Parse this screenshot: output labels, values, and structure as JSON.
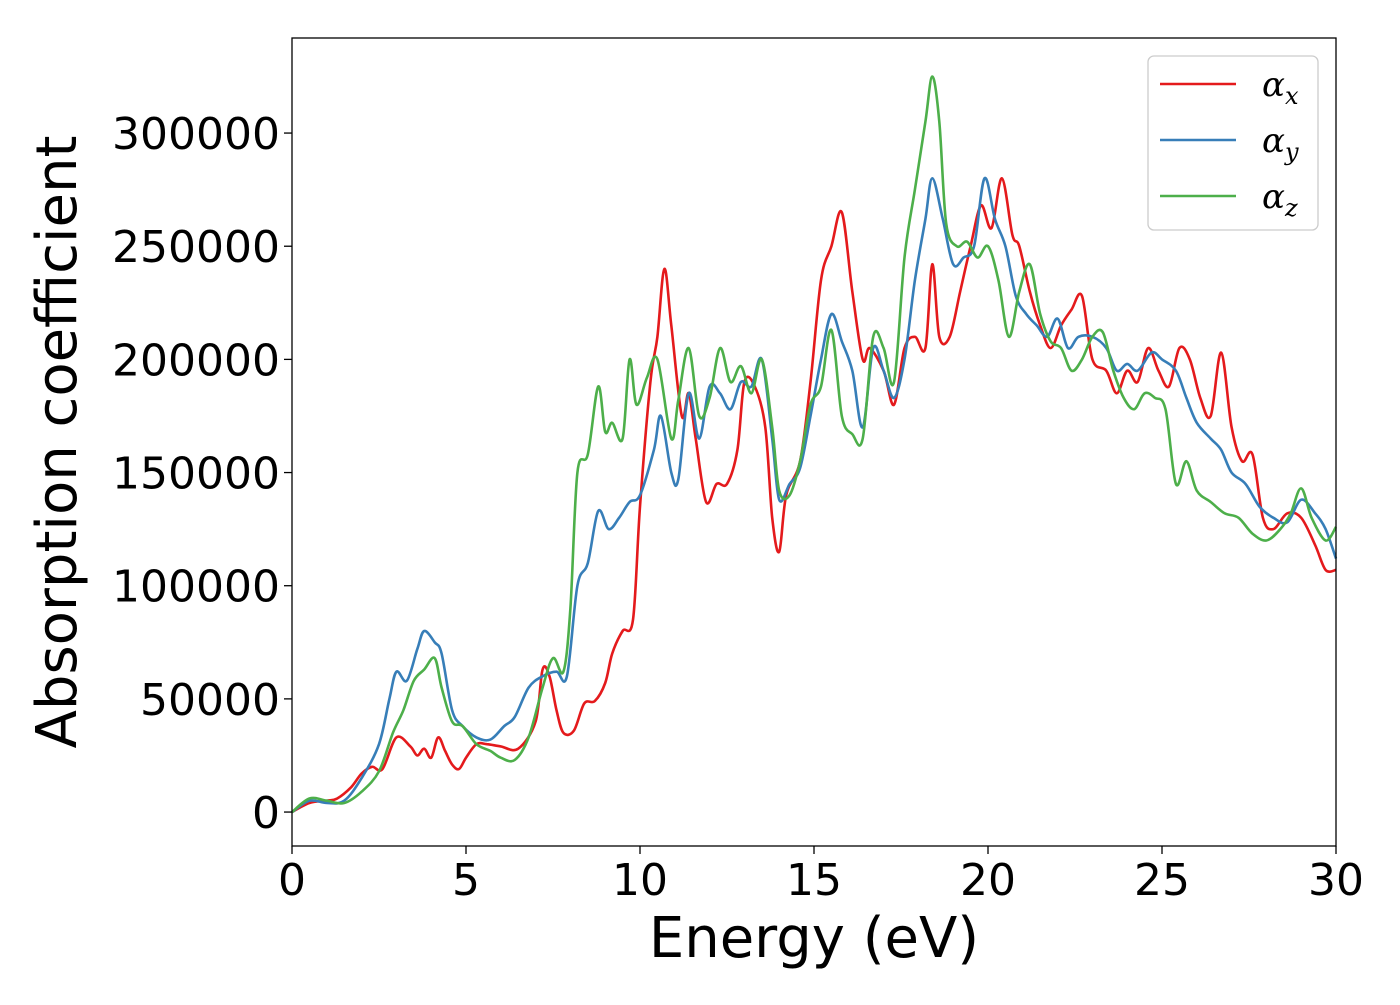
{
  "chart_data": {
    "type": "line",
    "title": "",
    "xlabel": "Energy (eV)",
    "ylabel": "Absorption coefficient",
    "xlim": [
      0,
      30
    ],
    "ylim": [
      -15000,
      342000
    ],
    "xticks": [
      0,
      5,
      10,
      15,
      20,
      25,
      30
    ],
    "yticks": [
      0,
      50000,
      100000,
      150000,
      200000,
      250000,
      300000
    ],
    "grid": false,
    "legend_position": "top-right",
    "series": [
      {
        "name": "αx",
        "label_base": "α",
        "label_sub": "x",
        "color": "#e41a1c",
        "points": [
          [
            0,
            0
          ],
          [
            0.5,
            4000
          ],
          [
            1,
            5000
          ],
          [
            1.3,
            6000
          ],
          [
            1.7,
            11000
          ],
          [
            2,
            17000
          ],
          [
            2.3,
            20000
          ],
          [
            2.6,
            19000
          ],
          [
            3,
            33000
          ],
          [
            3.4,
            29000
          ],
          [
            3.6,
            25000
          ],
          [
            3.8,
            28000
          ],
          [
            4,
            24000
          ],
          [
            4.2,
            33000
          ],
          [
            4.4,
            27000
          ],
          [
            4.6,
            21000
          ],
          [
            4.8,
            19000
          ],
          [
            5,
            24000
          ],
          [
            5.3,
            30000
          ],
          [
            5.6,
            30000
          ],
          [
            6,
            29000
          ],
          [
            6.5,
            28000
          ],
          [
            7,
            40000
          ],
          [
            7.2,
            63000
          ],
          [
            7.4,
            60000
          ],
          [
            7.6,
            45000
          ],
          [
            7.8,
            35000
          ],
          [
            8.1,
            36000
          ],
          [
            8.4,
            48000
          ],
          [
            8.7,
            49000
          ],
          [
            9,
            57000
          ],
          [
            9.2,
            70000
          ],
          [
            9.5,
            80000
          ],
          [
            9.8,
            85000
          ],
          [
            10,
            135000
          ],
          [
            10.3,
            190000
          ],
          [
            10.5,
            210000
          ],
          [
            10.7,
            240000
          ],
          [
            10.9,
            215000
          ],
          [
            11.2,
            175000
          ],
          [
            11.4,
            185000
          ],
          [
            11.6,
            165000
          ],
          [
            11.9,
            137000
          ],
          [
            12.2,
            145000
          ],
          [
            12.5,
            145000
          ],
          [
            12.8,
            160000
          ],
          [
            13,
            190000
          ],
          [
            13.3,
            188000
          ],
          [
            13.6,
            170000
          ],
          [
            13.8,
            130000
          ],
          [
            14,
            115000
          ],
          [
            14.2,
            140000
          ],
          [
            14.6,
            155000
          ],
          [
            14.9,
            190000
          ],
          [
            15.2,
            235000
          ],
          [
            15.5,
            250000
          ],
          [
            15.8,
            265000
          ],
          [
            16.1,
            230000
          ],
          [
            16.4,
            200000
          ],
          [
            16.6,
            205000
          ],
          [
            17,
            195000
          ],
          [
            17.3,
            180000
          ],
          [
            17.6,
            205000
          ],
          [
            17.9,
            210000
          ],
          [
            18.2,
            205000
          ],
          [
            18.4,
            242000
          ],
          [
            18.6,
            210000
          ],
          [
            18.9,
            210000
          ],
          [
            19.2,
            230000
          ],
          [
            19.5,
            250000
          ],
          [
            19.8,
            268000
          ],
          [
            20.1,
            258000
          ],
          [
            20.4,
            280000
          ],
          [
            20.7,
            255000
          ],
          [
            20.9,
            250000
          ],
          [
            21.2,
            230000
          ],
          [
            21.5,
            215000
          ],
          [
            21.8,
            205000
          ],
          [
            22.1,
            215000
          ],
          [
            22.4,
            222000
          ],
          [
            22.7,
            228000
          ],
          [
            23,
            200000
          ],
          [
            23.4,
            195000
          ],
          [
            23.7,
            185000
          ],
          [
            24,
            195000
          ],
          [
            24.3,
            190000
          ],
          [
            24.6,
            205000
          ],
          [
            24.9,
            195000
          ],
          [
            25.2,
            188000
          ],
          [
            25.5,
            205000
          ],
          [
            25.8,
            200000
          ],
          [
            26.1,
            183000
          ],
          [
            26.4,
            175000
          ],
          [
            26.7,
            203000
          ],
          [
            27,
            170000
          ],
          [
            27.3,
            155000
          ],
          [
            27.6,
            158000
          ],
          [
            27.9,
            130000
          ],
          [
            28.2,
            125000
          ],
          [
            28.6,
            132000
          ],
          [
            29,
            130000
          ],
          [
            29.4,
            118000
          ],
          [
            29.7,
            107000
          ],
          [
            30,
            107000
          ]
        ]
      },
      {
        "name": "αy",
        "label_base": "α",
        "label_sub": "y",
        "color": "#377eb8",
        "points": [
          [
            0,
            0
          ],
          [
            0.5,
            5000
          ],
          [
            1,
            4000
          ],
          [
            1.5,
            5000
          ],
          [
            2,
            15000
          ],
          [
            2.5,
            30000
          ],
          [
            2.8,
            50000
          ],
          [
            3,
            62000
          ],
          [
            3.3,
            58000
          ],
          [
            3.6,
            72000
          ],
          [
            3.8,
            80000
          ],
          [
            4.1,
            75000
          ],
          [
            4.3,
            70000
          ],
          [
            4.6,
            45000
          ],
          [
            4.9,
            38000
          ],
          [
            5.3,
            33000
          ],
          [
            5.7,
            32000
          ],
          [
            6.1,
            38000
          ],
          [
            6.4,
            42000
          ],
          [
            6.8,
            55000
          ],
          [
            7.2,
            60000
          ],
          [
            7.6,
            62000
          ],
          [
            7.9,
            60000
          ],
          [
            8.2,
            100000
          ],
          [
            8.5,
            110000
          ],
          [
            8.8,
            133000
          ],
          [
            9.1,
            125000
          ],
          [
            9.4,
            130000
          ],
          [
            9.7,
            137000
          ],
          [
            10,
            140000
          ],
          [
            10.4,
            160000
          ],
          [
            10.6,
            175000
          ],
          [
            10.9,
            150000
          ],
          [
            11.1,
            147000
          ],
          [
            11.4,
            185000
          ],
          [
            11.7,
            165000
          ],
          [
            12,
            188000
          ],
          [
            12.3,
            185000
          ],
          [
            12.6,
            178000
          ],
          [
            12.9,
            190000
          ],
          [
            13.2,
            188000
          ],
          [
            13.5,
            200000
          ],
          [
            13.8,
            165000
          ],
          [
            14,
            138000
          ],
          [
            14.3,
            145000
          ],
          [
            14.6,
            152000
          ],
          [
            14.9,
            175000
          ],
          [
            15.2,
            200000
          ],
          [
            15.5,
            220000
          ],
          [
            15.8,
            208000
          ],
          [
            16.1,
            195000
          ],
          [
            16.4,
            170000
          ],
          [
            16.7,
            205000
          ],
          [
            17,
            195000
          ],
          [
            17.3,
            183000
          ],
          [
            17.6,
            200000
          ],
          [
            17.9,
            235000
          ],
          [
            18.2,
            262000
          ],
          [
            18.4,
            280000
          ],
          [
            18.7,
            262000
          ],
          [
            19,
            242000
          ],
          [
            19.3,
            245000
          ],
          [
            19.6,
            250000
          ],
          [
            19.9,
            280000
          ],
          [
            20.2,
            262000
          ],
          [
            20.5,
            250000
          ],
          [
            20.8,
            228000
          ],
          [
            21.1,
            220000
          ],
          [
            21.4,
            215000
          ],
          [
            21.7,
            210000
          ],
          [
            22,
            218000
          ],
          [
            22.3,
            205000
          ],
          [
            22.6,
            210000
          ],
          [
            23,
            210000
          ],
          [
            23.4,
            205000
          ],
          [
            23.7,
            195000
          ],
          [
            24,
            198000
          ],
          [
            24.3,
            195000
          ],
          [
            24.7,
            203000
          ],
          [
            25,
            200000
          ],
          [
            25.4,
            195000
          ],
          [
            25.7,
            183000
          ],
          [
            26,
            172000
          ],
          [
            26.4,
            165000
          ],
          [
            26.7,
            160000
          ],
          [
            27,
            150000
          ],
          [
            27.4,
            145000
          ],
          [
            27.8,
            135000
          ],
          [
            28.2,
            130000
          ],
          [
            28.6,
            128000
          ],
          [
            29,
            138000
          ],
          [
            29.4,
            132000
          ],
          [
            29.7,
            125000
          ],
          [
            30,
            112000
          ]
        ]
      },
      {
        "name": "αz",
        "label_base": "α",
        "label_sub": "z",
        "color": "#4daf4a",
        "points": [
          [
            0,
            0
          ],
          [
            0.5,
            6000
          ],
          [
            1,
            5000
          ],
          [
            1.5,
            4000
          ],
          [
            2,
            9000
          ],
          [
            2.5,
            18000
          ],
          [
            2.9,
            35000
          ],
          [
            3.2,
            45000
          ],
          [
            3.5,
            58000
          ],
          [
            3.8,
            63000
          ],
          [
            4.1,
            68000
          ],
          [
            4.3,
            55000
          ],
          [
            4.6,
            40000
          ],
          [
            4.9,
            38000
          ],
          [
            5.3,
            30000
          ],
          [
            5.7,
            27000
          ],
          [
            6,
            24000
          ],
          [
            6.4,
            23000
          ],
          [
            6.8,
            33000
          ],
          [
            7.2,
            55000
          ],
          [
            7.5,
            68000
          ],
          [
            7.8,
            62000
          ],
          [
            8,
            90000
          ],
          [
            8.2,
            150000
          ],
          [
            8.5,
            158000
          ],
          [
            8.8,
            188000
          ],
          [
            9,
            168000
          ],
          [
            9.2,
            172000
          ],
          [
            9.5,
            165000
          ],
          [
            9.7,
            200000
          ],
          [
            9.9,
            180000
          ],
          [
            10.2,
            192000
          ],
          [
            10.5,
            200000
          ],
          [
            10.9,
            165000
          ],
          [
            11.1,
            182000
          ],
          [
            11.4,
            205000
          ],
          [
            11.7,
            175000
          ],
          [
            12,
            183000
          ],
          [
            12.3,
            205000
          ],
          [
            12.6,
            190000
          ],
          [
            12.9,
            197000
          ],
          [
            13.2,
            185000
          ],
          [
            13.5,
            200000
          ],
          [
            13.8,
            170000
          ],
          [
            14,
            142000
          ],
          [
            14.3,
            140000
          ],
          [
            14.6,
            155000
          ],
          [
            14.9,
            180000
          ],
          [
            15.2,
            188000
          ],
          [
            15.5,
            213000
          ],
          [
            15.8,
            175000
          ],
          [
            16.1,
            167000
          ],
          [
            16.4,
            165000
          ],
          [
            16.7,
            210000
          ],
          [
            17,
            205000
          ],
          [
            17.3,
            190000
          ],
          [
            17.6,
            245000
          ],
          [
            17.9,
            275000
          ],
          [
            18.2,
            305000
          ],
          [
            18.4,
            325000
          ],
          [
            18.6,
            305000
          ],
          [
            18.8,
            260000
          ],
          [
            19.1,
            250000
          ],
          [
            19.4,
            252000
          ],
          [
            19.7,
            245000
          ],
          [
            20,
            250000
          ],
          [
            20.3,
            235000
          ],
          [
            20.6,
            210000
          ],
          [
            20.9,
            230000
          ],
          [
            21.2,
            242000
          ],
          [
            21.5,
            220000
          ],
          [
            21.8,
            208000
          ],
          [
            22.1,
            205000
          ],
          [
            22.4,
            195000
          ],
          [
            22.7,
            200000
          ],
          [
            23,
            210000
          ],
          [
            23.3,
            212000
          ],
          [
            23.6,
            195000
          ],
          [
            23.9,
            183000
          ],
          [
            24.2,
            178000
          ],
          [
            24.5,
            185000
          ],
          [
            24.8,
            183000
          ],
          [
            25.1,
            178000
          ],
          [
            25.4,
            145000
          ],
          [
            25.7,
            155000
          ],
          [
            26,
            142000
          ],
          [
            26.4,
            137000
          ],
          [
            26.8,
            132000
          ],
          [
            27.2,
            130000
          ],
          [
            27.6,
            123000
          ],
          [
            28,
            120000
          ],
          [
            28.4,
            125000
          ],
          [
            28.7,
            132000
          ],
          [
            29,
            143000
          ],
          [
            29.3,
            130000
          ],
          [
            29.7,
            120000
          ],
          [
            30,
            126000
          ]
        ]
      }
    ]
  }
}
